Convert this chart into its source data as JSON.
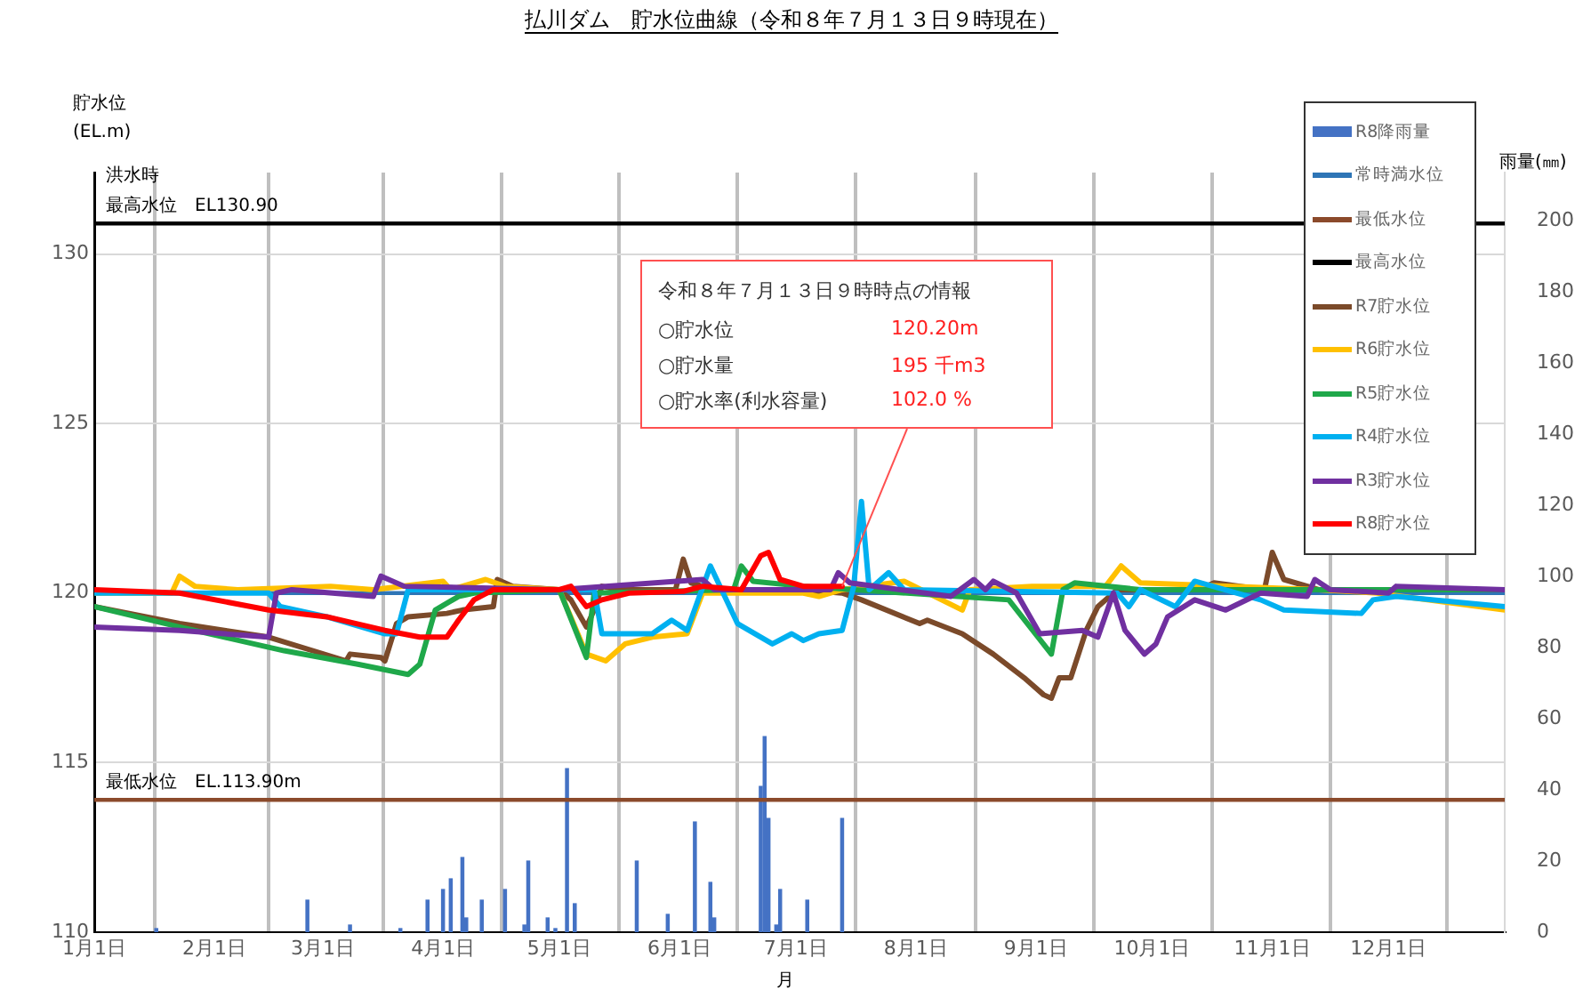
{
  "chart_data": {
    "type": "line",
    "title": "払川ダム　貯水位曲線（令和８年７月１３日９時現在）",
    "xlabel": "月",
    "ylabel": "貯水位\n(EL.m)",
    "y2label": "雨量(㎜)",
    "xlim": [
      "--01-01",
      "--12-31"
    ],
    "xticks": [
      {
        "value": "--01-01",
        "label": "1月1日"
      },
      {
        "value": "--02-01",
        "label": "2月1日"
      },
      {
        "value": "--03-01",
        "label": "3月1日"
      },
      {
        "value": "--04-01",
        "label": "4月1日"
      },
      {
        "value": "--05-01",
        "label": "5月1日"
      },
      {
        "value": "--06-01",
        "label": "6月1日"
      },
      {
        "value": "--07-01",
        "label": "7月1日"
      },
      {
        "value": "--08-01",
        "label": "8月1日"
      },
      {
        "value": "--09-01",
        "label": "9月1日"
      },
      {
        "value": "--10-01",
        "label": "10月1日"
      },
      {
        "value": "--11-01",
        "label": "11月1日"
      },
      {
        "value": "--12-01",
        "label": "12月1日"
      }
    ],
    "ylim": [
      110,
      132.4
    ],
    "yticks": [
      110,
      115,
      120,
      125,
      130
    ],
    "y2lim": [
      0,
      213.7
    ],
    "y2ticks": [
      0,
      20,
      40,
      60,
      80,
      100,
      120,
      140,
      160,
      180,
      200
    ],
    "grid": true,
    "legend": "top right",
    "marker": "none",
    "line_style": "solid",
    "series": [
      {
        "name": "R8降雨量",
        "type": "bar",
        "axis": "y2",
        "color": "#4472c4",
        "x": [
          "--01-17",
          "--02-25",
          "--03-08",
          "--03-21",
          "--03-28",
          "--04-01",
          "--04-03",
          "--04-06",
          "--04-07",
          "--04-11",
          "--04-17",
          "--04-22",
          "--04-23",
          "--04-28",
          "--04-30",
          "--05-03",
          "--05-05",
          "--05-21",
          "--05-29",
          "--06-05",
          "--06-09",
          "--06-10",
          "--06-22",
          "--06-23",
          "--06-24",
          "--06-26",
          "--06-27",
          "--07-04",
          "--07-13"
        ],
        "values": [
          1,
          9,
          2,
          1,
          9,
          12,
          15,
          21,
          4,
          9,
          12,
          2,
          20,
          4,
          1,
          46,
          8,
          20,
          5,
          31,
          14,
          4,
          41,
          55,
          32,
          2,
          12,
          9,
          32
        ]
      },
      {
        "name": "常時満水位",
        "color": "#2e75b6",
        "x": [
          "--01-01",
          "--12-31"
        ],
        "values": [
          120.0,
          120.0
        ]
      },
      {
        "name": "最低水位",
        "color": "#8b4a2b",
        "x": [
          "--01-01",
          "--12-31"
        ],
        "values": [
          113.9,
          113.9
        ]
      },
      {
        "name": "最高水位",
        "color": "#000000",
        "x": [
          "--01-01",
          "--12-31"
        ],
        "values": [
          130.9,
          130.9
        ]
      },
      {
        "name": "R7貯水位",
        "color": "#7b4a2a",
        "x": [
          "--01-01",
          "--01-23",
          "--02-15",
          "--03-07",
          "--03-08",
          "--03-16",
          "--03-17",
          "--03-20",
          "--03-23",
          "--04-02",
          "--04-06",
          "--04-14",
          "--04-15",
          "--04-19",
          "--05-01",
          "--05-04",
          "--05-08",
          "--05-10",
          "--05-12",
          "--05-16",
          "--05-31",
          "--06-02",
          "--06-04",
          "--06-10",
          "--07-02",
          "--07-13",
          "--07-18",
          "--08-02",
          "--08-04",
          "--08-13",
          "--08-21",
          "--08-29",
          "--09-03",
          "--09-05",
          "--09-07",
          "--09-10",
          "--09-14",
          "--09-17",
          "--09-22",
          "--10-13",
          "--10-17",
          "--10-30",
          "--11-01",
          "--11-04",
          "--11-13",
          "--12-31"
        ],
        "values": [
          119.6,
          119.1,
          118.7,
          118.0,
          118.2,
          118.1,
          118.0,
          119.1,
          119.3,
          119.4,
          119.5,
          119.6,
          120.4,
          120.2,
          120.1,
          119.8,
          119.0,
          119.5,
          120.2,
          120.1,
          120.1,
          121.0,
          120.3,
          120.1,
          120.1,
          120.0,
          119.8,
          119.1,
          119.2,
          118.8,
          118.2,
          117.5,
          117.0,
          116.9,
          117.5,
          117.5,
          118.9,
          119.6,
          120.1,
          120.1,
          120.3,
          120.1,
          121.2,
          120.4,
          120.1,
          120.1
        ]
      },
      {
        "name": "R6貯水位",
        "color": "#ffc000",
        "x": [
          "--01-01",
          "--01-21",
          "--01-23",
          "--01-27",
          "--02-07",
          "--03-03",
          "--03-14",
          "--04-01",
          "--04-03",
          "--04-12",
          "--04-17",
          "--05-01",
          "--05-08",
          "--05-13",
          "--05-18",
          "--05-25",
          "--06-03",
          "--06-07",
          "--07-03",
          "--07-07",
          "--07-13",
          "--07-29",
          "--08-13",
          "--08-15",
          "--08-31",
          "--09-19",
          "--09-23",
          "--09-28",
          "--11-13",
          "--11-28",
          "--12-31"
        ],
        "values": [
          120.0,
          120.0,
          120.5,
          120.2,
          120.1,
          120.2,
          120.1,
          120.35,
          120.1,
          120.4,
          120.2,
          120.1,
          118.2,
          118.0,
          118.5,
          118.7,
          118.8,
          120.0,
          120.0,
          119.9,
          120.1,
          120.35,
          119.5,
          120.1,
          120.2,
          120.2,
          120.8,
          120.3,
          120.1,
          120.0,
          119.5
        ]
      },
      {
        "name": "R5貯水位",
        "color": "#1fa84a",
        "x": [
          "--01-01",
          "--01-23",
          "--02-19",
          "--03-10",
          "--03-23",
          "--03-26",
          "--03-30",
          "--04-05",
          "--04-09",
          "--05-01",
          "--05-08",
          "--05-10",
          "--06-15",
          "--06-17",
          "--06-20",
          "--07-03",
          "--08-25",
          "--09-05",
          "--09-08",
          "--09-11",
          "--09-28",
          "--12-31"
        ],
        "values": [
          119.6,
          119.0,
          118.3,
          117.9,
          117.6,
          117.9,
          119.5,
          119.9,
          120.0,
          120.1,
          118.1,
          120.0,
          120.1,
          120.8,
          120.35,
          120.2,
          119.8,
          118.2,
          120.1,
          120.3,
          120.1,
          120.1
        ]
      },
      {
        "name": "R4貯水位",
        "color": "#00b0f0",
        "x": [
          "--01-01",
          "--02-15",
          "--02-18",
          "--03-02",
          "--03-17",
          "--03-20",
          "--03-23",
          "--05-01",
          "--05-10",
          "--05-12",
          "--05-25",
          "--05-30",
          "--06-03",
          "--06-09",
          "--06-16",
          "--06-25",
          "--06-30",
          "--07-03",
          "--07-07",
          "--07-13",
          "--07-16",
          "--07-18",
          "--07-20",
          "--07-25",
          "--07-29",
          "--09-22",
          "--09-25",
          "--09-28",
          "--10-07",
          "--10-12",
          "--10-29",
          "--11-04",
          "--11-24",
          "--11-27",
          "--12-03",
          "--12-31"
        ],
        "values": [
          120.0,
          120.0,
          119.6,
          119.3,
          118.8,
          118.8,
          120.1,
          120.1,
          120.1,
          118.8,
          118.8,
          119.2,
          118.9,
          120.8,
          119.1,
          118.5,
          118.8,
          118.6,
          118.8,
          118.9,
          120.2,
          122.7,
          120.1,
          120.6,
          120.1,
          120.0,
          119.6,
          120.1,
          119.6,
          120.35,
          119.8,
          119.5,
          119.4,
          119.8,
          119.9,
          119.6
        ]
      },
      {
        "name": "R3貯水位",
        "color": "#7030a0",
        "x": [
          "--01-01",
          "--01-23",
          "--02-15",
          "--02-17",
          "--02-21",
          "--03-14",
          "--03-16",
          "--03-22",
          "--05-01",
          "--06-07",
          "--06-10",
          "--07-10",
          "--07-12",
          "--07-15",
          "--08-10",
          "--08-16",
          "--08-19",
          "--08-21",
          "--08-27",
          "--09-02",
          "--09-13",
          "--09-17",
          "--09-21",
          "--09-24",
          "--09-29",
          "--10-02",
          "--10-05",
          "--10-12",
          "--10-20",
          "--10-29",
          "--11-10",
          "--11-12",
          "--11-16",
          "--12-01",
          "--12-03",
          "--12-31"
        ],
        "values": [
          119.0,
          118.9,
          118.7,
          120.0,
          120.1,
          119.9,
          120.5,
          120.2,
          120.1,
          120.4,
          120.1,
          120.1,
          120.6,
          120.3,
          119.9,
          120.4,
          120.1,
          120.35,
          120.0,
          118.8,
          118.9,
          118.7,
          120.0,
          118.9,
          118.2,
          118.5,
          119.3,
          119.8,
          119.5,
          120.0,
          119.9,
          120.4,
          120.1,
          120.0,
          120.2,
          120.1
        ]
      },
      {
        "name": "R8貯水位",
        "color": "#ff0000",
        "x": [
          "--01-01",
          "--01-23",
          "--02-15",
          "--03-02",
          "--03-17",
          "--03-26",
          "--04-02",
          "--04-05",
          "--04-09",
          "--04-14",
          "--04-25",
          "--05-01",
          "--05-04",
          "--05-08",
          "--05-12",
          "--05-19",
          "--06-02",
          "--06-07",
          "--06-17",
          "--06-22",
          "--06-24",
          "--06-27",
          "--07-03",
          "--07-13"
        ],
        "values": [
          120.1,
          120.0,
          119.5,
          119.3,
          118.9,
          118.7,
          118.7,
          119.2,
          119.8,
          120.1,
          120.1,
          120.1,
          120.2,
          119.6,
          119.8,
          120.0,
          120.05,
          120.2,
          120.1,
          121.1,
          121.2,
          120.4,
          120.2,
          120.2
        ]
      }
    ],
    "annotations": [
      {
        "text": "洪水時",
        "x": "--01-04",
        "y": 130.9
      },
      {
        "text": "最高水位　EL130.90",
        "x": "--01-04",
        "y": 130.9
      },
      {
        "text": "最低水位　EL.113.90m",
        "x": "--01-04",
        "y": 113.9
      },
      "令和８年７月１３日９時時点の情報",
      "○貯水位",
      "120.20m",
      "○貯水量",
      "195 千m3",
      "○貯水率(利水容量)",
      {
        "text": "102.0 %",
        "x": "--07-13",
        "y": 120.2
      }
    ]
  }
}
